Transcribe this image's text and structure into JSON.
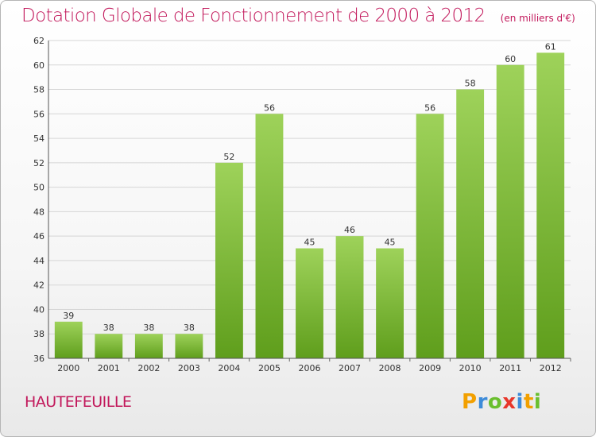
{
  "chart_data": {
    "type": "bar",
    "title": "Dotation Globale de Fonctionnement de 2000 à 2012",
    "subtitle": "(en milliers d'€)",
    "categories": [
      "2000",
      "2001",
      "2002",
      "2003",
      "2004",
      "2005",
      "2006",
      "2007",
      "2008",
      "2009",
      "2010",
      "2011",
      "2012"
    ],
    "values": [
      39,
      38,
      38,
      38,
      52,
      56,
      45,
      46,
      45,
      56,
      58,
      60,
      61
    ],
    "ylim": [
      36,
      62
    ],
    "yticks": [
      36,
      38,
      40,
      42,
      44,
      46,
      48,
      50,
      52,
      54,
      56,
      58,
      60,
      62
    ],
    "grid": true,
    "bar_color": "#7cc43a"
  },
  "commune": "HAUTEFEUILLE",
  "logo": {
    "text": "Proxiti",
    "colors": [
      "#f2a000",
      "#3d8bd9",
      "#6abf2e",
      "#e8362a",
      "#3d8bd9",
      "#f2a000",
      "#6abf2e"
    ]
  }
}
